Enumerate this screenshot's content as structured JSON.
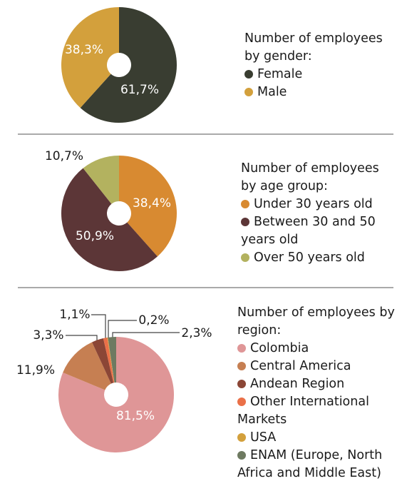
{
  "chart_data": [
    {
      "type": "pie",
      "title": "Number of employees by gender:",
      "labels": [
        "Female",
        "Male"
      ],
      "values": [
        61.7,
        38.3
      ],
      "value_labels": [
        "61,7%",
        "38,3%"
      ],
      "colors": [
        "#393d31",
        "#d3a03c"
      ]
    },
    {
      "type": "pie",
      "title": "Number of employees by age group:",
      "labels": [
        "Under 30 years old",
        "Between 30 and 50 years old",
        "Over 50 years old"
      ],
      "values": [
        38.4,
        50.9,
        10.7
      ],
      "value_labels": [
        "38,4%",
        "50,9%",
        "10,7%"
      ],
      "colors": [
        "#d88a31",
        "#5c3637",
        "#b3b25f"
      ]
    },
    {
      "type": "pie",
      "title": "Number of employees by region:",
      "labels": [
        "Colombia",
        "Central America",
        "Andean Region",
        "Other International Markets",
        "USA",
        "ENAM (Europe, North Africa and Middle East)"
      ],
      "values": [
        81.5,
        11.9,
        3.3,
        1.1,
        0.2,
        2.3
      ],
      "value_labels": [
        "81,5%",
        "11,9%",
        "3,3%",
        "1,1%",
        "0,2%",
        "2,3%"
      ],
      "colors": [
        "#df9697",
        "#c67f52",
        "#8b4636",
        "#ea7048",
        "#d3a03c",
        "#6e7a61"
      ]
    }
  ]
}
